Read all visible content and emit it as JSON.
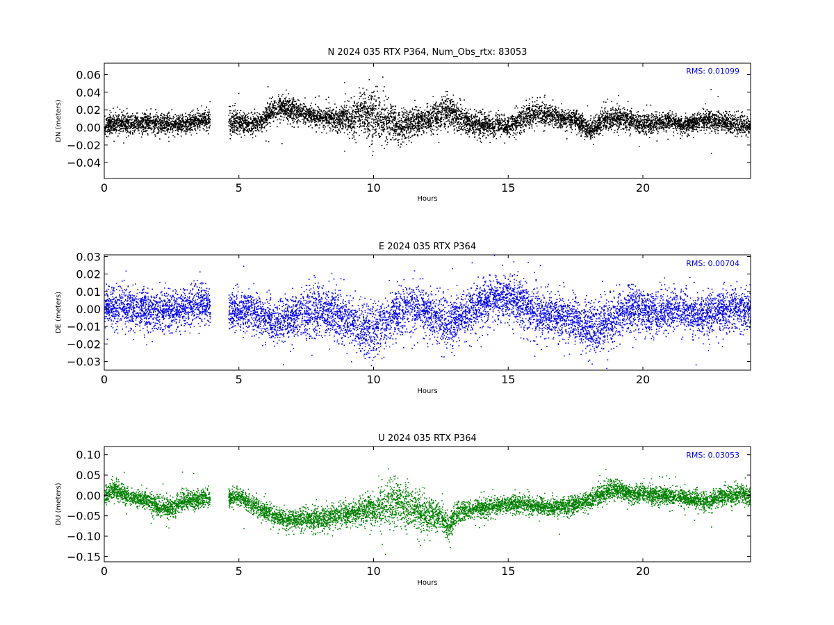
{
  "chart_data": [
    {
      "type": "scatter",
      "title": "N 2024 035 RTX  P364, Num_Obs_rtx: 83053",
      "xlabel": "Hours",
      "ylabel": "DN (meters)",
      "xlim": [
        0,
        24
      ],
      "ylim": [
        -0.058,
        0.073
      ],
      "xticks": [
        0,
        5,
        10,
        15,
        20
      ],
      "yticks": [
        -0.04,
        -0.02,
        0.0,
        0.02,
        0.04,
        0.06
      ],
      "ytick_labels": [
        "−0.04",
        "−0.02",
        "0.00",
        "0.02",
        "0.04",
        "0.06"
      ],
      "color": "#000000",
      "annotation": "RMS:  0.01099",
      "annotation_color": "#0000ff",
      "gaps": [
        [
          3.92,
          4.6
        ],
        [
          5.38,
          5.4
        ]
      ],
      "series": [
        {
          "x": [
            0.0,
            0.5,
            1.0,
            1.5,
            2.0,
            2.5,
            3.0,
            3.5,
            3.9,
            4.6,
            5.0,
            5.4,
            5.8,
            6.2,
            6.6,
            7.0,
            7.5,
            8.0,
            8.5,
            9.0,
            9.5,
            10.0,
            10.5,
            11.0,
            11.5,
            12.0,
            12.5,
            12.8,
            13.0,
            13.5,
            14.0,
            14.5,
            15.0,
            15.6,
            16.0,
            16.5,
            17.0,
            17.5,
            18.0,
            18.5,
            19.0,
            19.5,
            20.0,
            20.5,
            21.0,
            21.5,
            22.0,
            22.5,
            23.0,
            23.5,
            24.0
          ],
          "y": [
            0.002,
            0.006,
            0.004,
            0.006,
            0.005,
            0.004,
            0.005,
            0.008,
            0.008,
            0.007,
            0.008,
            0.003,
            0.008,
            0.018,
            0.022,
            0.02,
            0.015,
            0.012,
            0.01,
            0.012,
            0.018,
            0.012,
            0.008,
            0.002,
            0.006,
            0.01,
            0.016,
            0.02,
            0.014,
            0.006,
            0.004,
            0.004,
            0.002,
            0.012,
            0.016,
            0.014,
            0.01,
            0.01,
            -0.003,
            0.008,
            0.012,
            0.008,
            0.004,
            0.006,
            0.008,
            0.002,
            0.008,
            0.01,
            0.006,
            0.004,
            0.004
          ],
          "spread": [
            0.01,
            0.01,
            0.01,
            0.011,
            0.01,
            0.01,
            0.01,
            0.009,
            0.009,
            0.012,
            0.012,
            0.01,
            0.01,
            0.012,
            0.012,
            0.012,
            0.01,
            0.01,
            0.012,
            0.016,
            0.022,
            0.026,
            0.022,
            0.016,
            0.014,
            0.014,
            0.016,
            0.018,
            0.014,
            0.012,
            0.012,
            0.012,
            0.01,
            0.014,
            0.012,
            0.012,
            0.01,
            0.01,
            0.01,
            0.012,
            0.012,
            0.01,
            0.01,
            0.01,
            0.009,
            0.008,
            0.009,
            0.01,
            0.01,
            0.01,
            0.01
          ]
        }
      ]
    },
    {
      "type": "scatter",
      "title": "E 2024 035 RTX  P364",
      "xlabel": "Hours",
      "ylabel": "DE (meters)",
      "xlim": [
        0,
        24
      ],
      "ylim": [
        -0.035,
        0.031
      ],
      "xticks": [
        0,
        5,
        10,
        15,
        20
      ],
      "yticks": [
        -0.03,
        -0.02,
        -0.01,
        0.0,
        0.01,
        0.02,
        0.03
      ],
      "ytick_labels": [
        "−0.03",
        "−0.02",
        "−0.01",
        "0.00",
        "0.01",
        "0.02",
        "0.03"
      ],
      "color": "#0000ff",
      "annotation": "RMS:  0.00704",
      "annotation_color": "#0000ff",
      "gaps": [
        [
          3.92,
          4.6
        ],
        [
          5.38,
          5.4
        ]
      ],
      "series": [
        {
          "x": [
            0.0,
            0.5,
            1.0,
            1.5,
            2.0,
            2.5,
            3.0,
            3.5,
            3.9,
            4.6,
            5.0,
            5.4,
            5.8,
            6.3,
            6.7,
            7.0,
            7.5,
            8.0,
            8.5,
            9.0,
            9.5,
            10.0,
            10.5,
            11.0,
            11.5,
            12.0,
            12.5,
            13.0,
            13.5,
            14.0,
            14.5,
            15.0,
            15.5,
            16.0,
            16.5,
            17.0,
            17.5,
            18.0,
            18.5,
            19.0,
            19.5,
            20.0,
            20.5,
            21.0,
            21.5,
            22.0,
            22.5,
            23.0,
            23.5,
            24.0
          ],
          "y": [
            0.001,
            0.002,
            0.001,
            0.0,
            0.0,
            -0.001,
            0.001,
            0.003,
            0.001,
            0.0,
            -0.001,
            0.0,
            -0.004,
            -0.008,
            -0.006,
            -0.003,
            -0.002,
            0.0,
            -0.002,
            -0.006,
            -0.01,
            -0.012,
            -0.006,
            0.0,
            0.002,
            -0.003,
            -0.006,
            -0.006,
            -0.002,
            0.003,
            0.006,
            0.007,
            0.004,
            -0.002,
            -0.004,
            -0.004,
            -0.006,
            -0.012,
            -0.01,
            -0.004,
            0.001,
            0.0,
            -0.002,
            -0.001,
            0.0,
            -0.004,
            -0.002,
            -0.001,
            0.0,
            0.0
          ],
          "spread": [
            0.01,
            0.01,
            0.01,
            0.01,
            0.01,
            0.01,
            0.01,
            0.01,
            0.01,
            0.01,
            0.01,
            0.01,
            0.01,
            0.01,
            0.011,
            0.011,
            0.012,
            0.013,
            0.013,
            0.014,
            0.014,
            0.014,
            0.013,
            0.013,
            0.014,
            0.013,
            0.013,
            0.012,
            0.012,
            0.012,
            0.012,
            0.012,
            0.012,
            0.012,
            0.012,
            0.012,
            0.012,
            0.013,
            0.013,
            0.012,
            0.012,
            0.011,
            0.011,
            0.011,
            0.01,
            0.01,
            0.01,
            0.01,
            0.01,
            0.01
          ]
        }
      ]
    },
    {
      "type": "scatter",
      "title": "U 2024 035 RTX  P364",
      "xlabel": "Hours",
      "ylabel": "DU (meters)",
      "xlim": [
        0,
        24
      ],
      "ylim": [
        -0.163,
        0.12
      ],
      "xticks": [
        0,
        5,
        10,
        15,
        20
      ],
      "yticks": [
        -0.15,
        -0.1,
        -0.05,
        0.0,
        0.05,
        0.1
      ],
      "ytick_labels": [
        "−0.15",
        "−0.10",
        "−0.05",
        "0.00",
        "0.05",
        "0.10"
      ],
      "color": "#008000",
      "annotation": "RMS:  0.03053",
      "annotation_color": "#0000ff",
      "gaps": [
        [
          3.92,
          4.6
        ],
        [
          5.38,
          5.4
        ]
      ],
      "series": [
        {
          "x": [
            0.0,
            0.3,
            0.7,
            1.0,
            1.5,
            2.0,
            2.5,
            3.0,
            3.5,
            3.9,
            4.6,
            5.0,
            5.4,
            6.0,
            6.5,
            7.0,
            7.5,
            8.0,
            8.5,
            9.0,
            9.5,
            10.0,
            10.5,
            11.0,
            11.5,
            12.0,
            12.5,
            12.8,
            13.0,
            13.5,
            14.0,
            14.5,
            15.0,
            15.5,
            16.0,
            16.5,
            17.0,
            17.5,
            18.0,
            18.5,
            18.9,
            19.5,
            20.0,
            20.5,
            21.0,
            21.5,
            22.0,
            22.5,
            23.0,
            23.5,
            24.0
          ],
          "y": [
            0.0,
            0.015,
            0.005,
            -0.005,
            -0.01,
            -0.025,
            -0.03,
            -0.01,
            -0.01,
            -0.005,
            -0.008,
            -0.002,
            -0.02,
            -0.04,
            -0.055,
            -0.06,
            -0.055,
            -0.06,
            -0.05,
            -0.045,
            -0.04,
            -0.03,
            -0.02,
            -0.015,
            -0.035,
            -0.045,
            -0.05,
            -0.08,
            -0.045,
            -0.035,
            -0.03,
            -0.025,
            -0.02,
            -0.02,
            -0.025,
            -0.03,
            -0.025,
            -0.02,
            -0.01,
            0.005,
            0.02,
            0.005,
            0.005,
            0.0,
            0.0,
            -0.005,
            -0.01,
            -0.015,
            0.0,
            0.005,
            0.0
          ],
          "spread": [
            0.02,
            0.022,
            0.02,
            0.018,
            0.018,
            0.022,
            0.022,
            0.022,
            0.02,
            0.02,
            0.02,
            0.02,
            0.02,
            0.02,
            0.02,
            0.022,
            0.024,
            0.026,
            0.026,
            0.025,
            0.025,
            0.04,
            0.048,
            0.05,
            0.045,
            0.035,
            0.03,
            0.03,
            0.026,
            0.022,
            0.02,
            0.02,
            0.018,
            0.02,
            0.02,
            0.02,
            0.02,
            0.02,
            0.02,
            0.022,
            0.022,
            0.02,
            0.02,
            0.02,
            0.018,
            0.018,
            0.018,
            0.02,
            0.022,
            0.02,
            0.02
          ]
        }
      ]
    }
  ]
}
